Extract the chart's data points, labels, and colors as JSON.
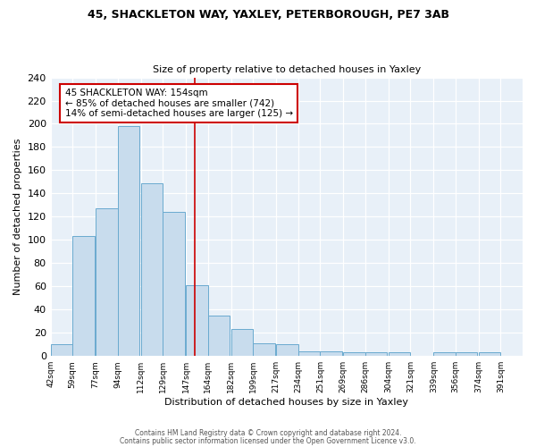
{
  "title1": "45, SHACKLETON WAY, YAXLEY, PETERBOROUGH, PE7 3AB",
  "title2": "Size of property relative to detached houses in Yaxley",
  "xlabel": "Distribution of detached houses by size in Yaxley",
  "ylabel": "Number of detached properties",
  "bin_labels": [
    "42sqm",
    "59sqm",
    "77sqm",
    "94sqm",
    "112sqm",
    "129sqm",
    "147sqm",
    "164sqm",
    "182sqm",
    "199sqm",
    "217sqm",
    "234sqm",
    "251sqm",
    "269sqm",
    "286sqm",
    "304sqm",
    "321sqm",
    "339sqm",
    "356sqm",
    "374sqm",
    "391sqm"
  ],
  "bin_left_edges": [
    42,
    59,
    77,
    94,
    112,
    129,
    147,
    164,
    182,
    199,
    217,
    234,
    251,
    269,
    286,
    304,
    321,
    339,
    356,
    374,
    391
  ],
  "bar_heights": [
    10,
    103,
    127,
    198,
    149,
    124,
    61,
    35,
    23,
    11,
    10,
    4,
    4,
    3,
    3,
    3,
    0,
    3,
    3,
    3
  ],
  "bar_color": "#c8dced",
  "bar_edge_color": "#6aaacf",
  "property_line_x": 154,
  "property_line_color": "#cc0000",
  "annotation_text": "45 SHACKLETON WAY: 154sqm\n← 85% of detached houses are smaller (742)\n14% of semi-detached houses are larger (125) →",
  "annotation_box_edge_color": "#cc0000",
  "ylim": [
    0,
    240
  ],
  "yticks": [
    0,
    20,
    40,
    60,
    80,
    100,
    120,
    140,
    160,
    180,
    200,
    220,
    240
  ],
  "footer_line1": "Contains HM Land Registry data © Crown copyright and database right 2024.",
  "footer_line2": "Contains public sector information licensed under the Open Government Licence v3.0.",
  "fig_bg_color": "#ffffff",
  "plot_bg_color": "#e8f0f8"
}
